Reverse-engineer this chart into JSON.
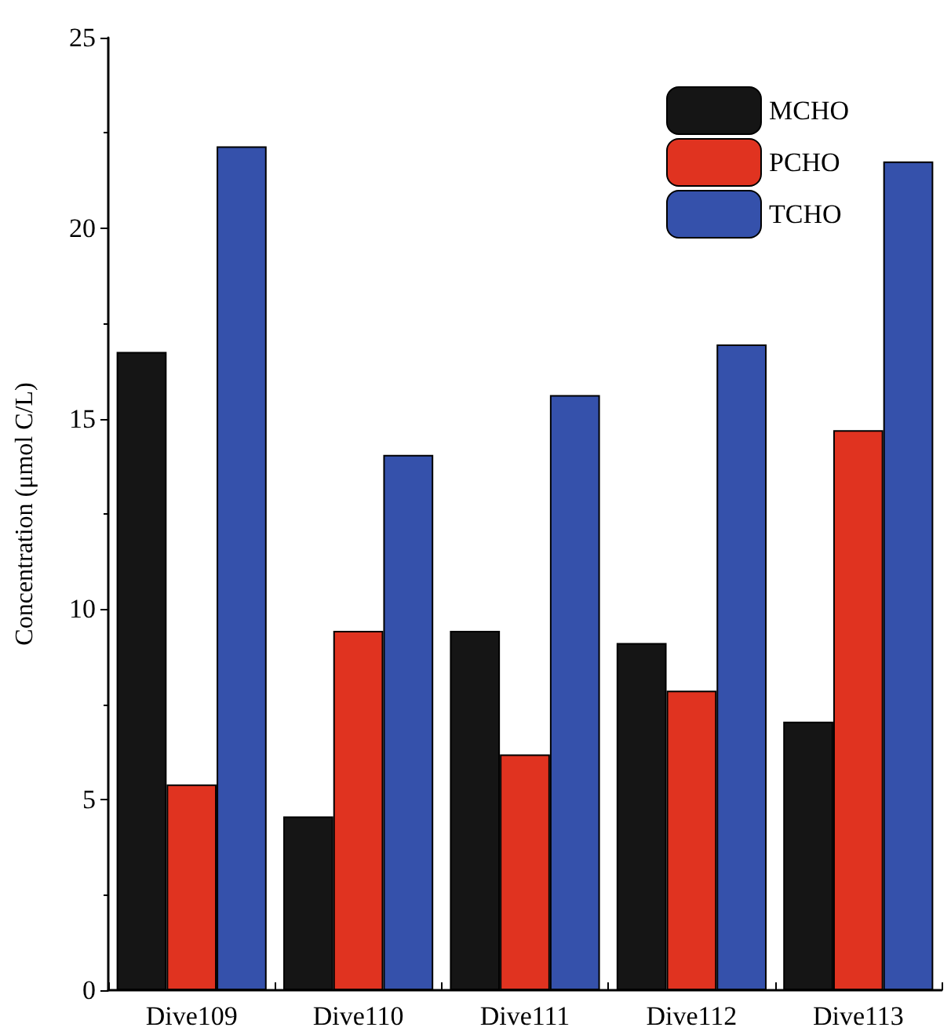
{
  "chart_data": {
    "type": "bar",
    "ylabel": "Concentration (μmol C/L)",
    "categories": [
      "Dive109",
      "Dive110",
      "Dive111",
      "Dive112",
      "Dive113"
    ],
    "series": [
      {
        "name": "MCHO",
        "color": "#151515",
        "values": [
          16.75,
          4.56,
          9.43,
          9.11,
          7.05
        ]
      },
      {
        "name": "PCHO",
        "color": "#e03320",
        "values": [
          5.4,
          9.43,
          6.19,
          7.86,
          14.7
        ]
      },
      {
        "name": "TCHO",
        "color": "#3551ab",
        "values": [
          22.15,
          14.05,
          15.62,
          16.95,
          21.75
        ]
      }
    ],
    "ylim": [
      0,
      25
    ],
    "yticks": [
      0,
      5,
      10,
      15,
      20,
      25
    ],
    "grid": false,
    "legend": "top right"
  }
}
